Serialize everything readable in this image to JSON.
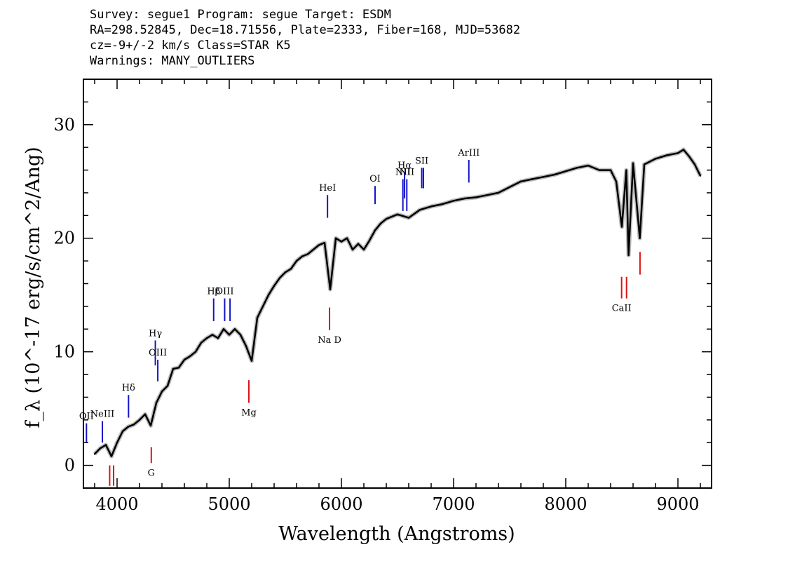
{
  "header": {
    "line1": "Survey: segue1 Program: segue Target: ESDM",
    "line2": "RA=298.52845, Dec=18.71556, Plate=2333, Fiber=168, MJD=53682",
    "line3": "cz=-9+/-2 km/s Class=STAR K5",
    "line4": "Warnings: MANY_OUTLIERS"
  },
  "chart_data": {
    "type": "line",
    "xlabel": "Wavelength (Angstroms)",
    "ylabel": "f_λ (10^-17 erg/s/cm^2/Ang)",
    "xlim": [
      3700,
      9300
    ],
    "ylim": [
      -2,
      34
    ],
    "xticks": [
      4000,
      5000,
      6000,
      7000,
      8000,
      9000
    ],
    "yticks": [
      0,
      10,
      20,
      30
    ],
    "series": [
      {
        "x": [
          3800,
          3850,
          3900,
          3950,
          4000,
          4050,
          4100,
          4150,
          4200,
          4250,
          4300,
          4350,
          4400,
          4450,
          4500,
          4550,
          4600,
          4650,
          4700,
          4750,
          4800,
          4850,
          4900,
          4950,
          5000,
          5050,
          5100,
          5150,
          5200,
          5250,
          5300,
          5350,
          5400,
          5450,
          5500,
          5550,
          5600,
          5650,
          5700,
          5750,
          5800,
          5850,
          5900,
          5950,
          6000,
          6050,
          6100,
          6150,
          6200,
          6250,
          6300,
          6350,
          6400,
          6500,
          6600,
          6700,
          6800,
          6900,
          7000,
          7100,
          7200,
          7300,
          7400,
          7500,
          7600,
          7700,
          7800,
          7900,
          8000,
          8100,
          8200,
          8300,
          8400,
          8450,
          8500,
          8540,
          8560,
          8600,
          8660,
          8700,
          8800,
          8900,
          9000,
          9050,
          9100,
          9150,
          9200
        ],
        "values": [
          1.0,
          1.5,
          1.8,
          0.8,
          2.0,
          3.0,
          3.4,
          3.6,
          4.0,
          4.5,
          3.5,
          5.5,
          6.5,
          7.0,
          8.5,
          8.6,
          9.3,
          9.6,
          10.0,
          10.8,
          11.2,
          11.5,
          11.2,
          12.0,
          11.5,
          12.0,
          11.5,
          10.5,
          9.2,
          13.0,
          14.0,
          15.0,
          15.8,
          16.5,
          17.0,
          17.3,
          18.0,
          18.4,
          18.6,
          19.0,
          19.4,
          19.6,
          15.5,
          20.0,
          19.7,
          20.0,
          19.0,
          19.5,
          19.0,
          19.8,
          20.7,
          21.3,
          21.7,
          22.1,
          21.8,
          22.5,
          22.8,
          23.0,
          23.3,
          23.5,
          23.6,
          23.8,
          24.0,
          24.5,
          25.0,
          25.2,
          25.4,
          25.6,
          25.9,
          26.2,
          26.4,
          26.0,
          26.0,
          25.0,
          21.0,
          26.0,
          18.5,
          26.6,
          20.0,
          26.5,
          27.0,
          27.3,
          27.5,
          27.8,
          27.2,
          26.5,
          25.5
        ]
      }
    ],
    "lines_blue": [
      {
        "label": "OII",
        "x": 3727,
        "y1": 2.0,
        "y2": 3.7
      },
      {
        "label": "NeIII",
        "x": 3869,
        "y1": 2.0,
        "y2": 3.9
      },
      {
        "label": "Hδ",
        "x": 4102,
        "y1": 4.2,
        "y2": 6.2
      },
      {
        "label": "Hγ",
        "x": 4341,
        "y1": 8.8,
        "y2": 11.0
      },
      {
        "label": "OIII",
        "x": 4363,
        "y1": 7.4,
        "y2": 9.3
      },
      {
        "label": "Hβ",
        "x": 4861,
        "y1": 12.7,
        "y2": 14.7
      },
      {
        "label": "OIII",
        "x": 4959,
        "y1": 12.7,
        "y2": 14.7
      },
      {
        "label": "",
        "x": 5007,
        "y1": 12.7,
        "y2": 14.7
      },
      {
        "label": "HeI",
        "x": 5876,
        "y1": 21.8,
        "y2": 23.8
      },
      {
        "label": "OI",
        "x": 6300,
        "y1": 23.0,
        "y2": 24.6
      },
      {
        "label": "NII",
        "x": 6548,
        "y1": 22.4,
        "y2": 25.2
      },
      {
        "label": "Hα",
        "x": 6563,
        "y1": 23.5,
        "y2": 25.8
      },
      {
        "label": "NII",
        "x": 6583,
        "y1": 22.4,
        "y2": 25.2
      },
      {
        "label": "SII",
        "x": 6716,
        "y1": 24.4,
        "y2": 26.2
      },
      {
        "label": "",
        "x": 6731,
        "y1": 24.4,
        "y2": 26.2
      },
      {
        "label": "ArIII",
        "x": 7136,
        "y1": 24.9,
        "y2": 26.9
      }
    ],
    "lines_red": [
      {
        "label": "",
        "x": 3934,
        "y1": -1.8,
        "y2": 0.0
      },
      {
        "label": "",
        "x": 3969,
        "y1": -1.8,
        "y2": 0.0
      },
      {
        "label": "G",
        "x": 4305,
        "y1": 0.2,
        "y2": 1.6
      },
      {
        "label": "Mg",
        "x": 5175,
        "y1": 5.5,
        "y2": 7.5
      },
      {
        "label": "Na D",
        "x": 5894,
        "y1": 11.9,
        "y2": 13.9
      },
      {
        "label": "CaII",
        "x": 8498,
        "y1": 14.7,
        "y2": 16.6
      },
      {
        "label": "",
        "x": 8542,
        "y1": 14.7,
        "y2": 16.6
      },
      {
        "label": "",
        "x": 8662,
        "y1": 16.8,
        "y2": 18.8
      }
    ]
  }
}
